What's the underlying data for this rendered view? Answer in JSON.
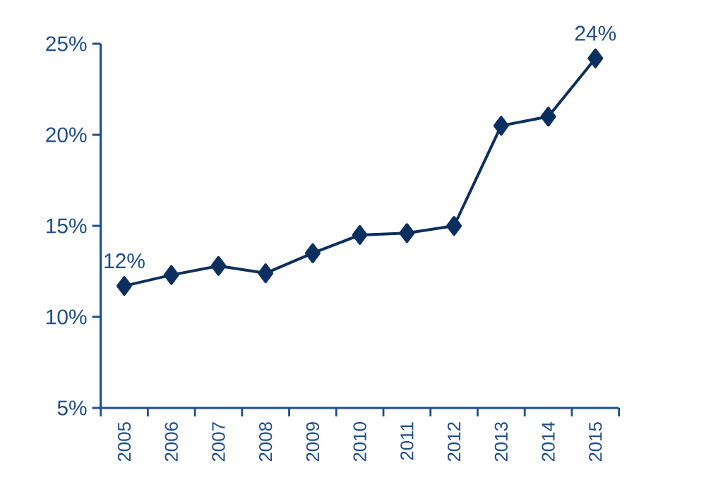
{
  "chart_data": {
    "type": "line",
    "categories": [
      "2005",
      "2006",
      "2007",
      "2008",
      "2009",
      "2010",
      "2011",
      "2012",
      "2013",
      "2014",
      "2015"
    ],
    "series": [
      {
        "color": "#0b2f5e",
        "values": [
          11.7,
          12.3,
          12.8,
          12.4,
          13.5,
          14.5,
          14.6,
          15.0,
          20.5,
          21.0,
          24.2
        ],
        "value_labels": [
          "12%",
          null,
          null,
          null,
          null,
          null,
          null,
          null,
          null,
          null,
          "24%"
        ]
      }
    ],
    "ylim": [
      5,
      25
    ],
    "yticks": [
      {
        "value": 5,
        "label": "5%"
      },
      {
        "value": 10,
        "label": "10%"
      },
      {
        "value": 15,
        "label": "15%"
      },
      {
        "value": 20,
        "label": "20%"
      },
      {
        "value": 25,
        "label": "25%"
      }
    ],
    "marker": "diamond",
    "line_style": "solid",
    "grid": false
  }
}
